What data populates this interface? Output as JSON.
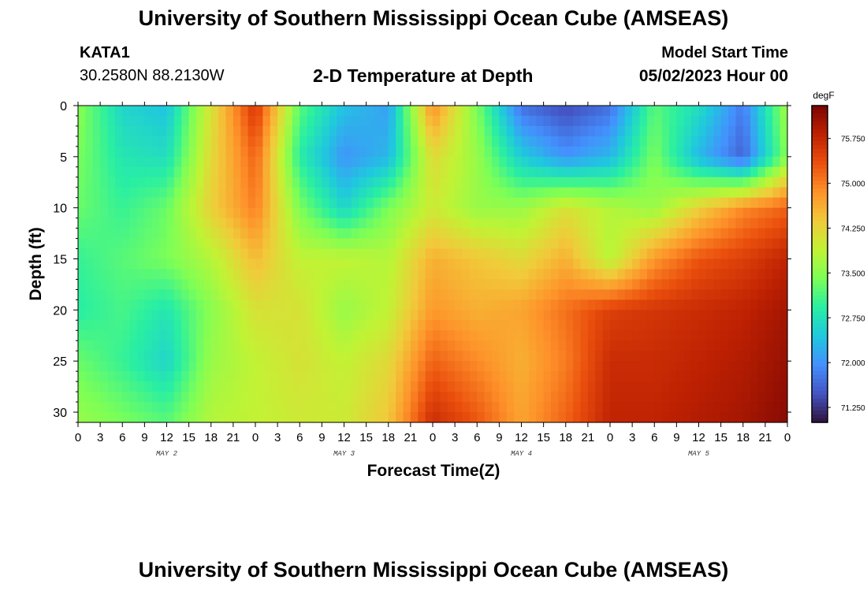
{
  "header": {
    "title": "University of Southern Mississippi Ocean Cube (AMSEAS)",
    "station": "KATA1",
    "coords": "30.2580N  88.2130W",
    "subtitle": "2-D Temperature at Depth",
    "start_label": "Model Start Time",
    "start_value": "05/02/2023 Hour 00"
  },
  "footer": {
    "title": "University of Southern Mississippi Ocean Cube (AMSEAS)"
  },
  "chart_data": {
    "type": "heatmap",
    "title": "2-D Temperature at Depth",
    "xlabel": "Forecast Time(Z)",
    "ylabel": "Depth (ft)",
    "x_tick_labels": [
      "0",
      "3",
      "6",
      "9",
      "12",
      "15",
      "18",
      "21",
      "0",
      "3",
      "6",
      "9",
      "12",
      "15",
      "18",
      "21",
      "0",
      "3",
      "6",
      "9",
      "12",
      "15",
      "18",
      "21",
      "0",
      "3",
      "6",
      "9",
      "12",
      "15",
      "18",
      "21",
      "0"
    ],
    "day_labels": [
      "MAY 2",
      "MAY 3",
      "MAY 4",
      "MAY 5"
    ],
    "xlim_hours": [
      0,
      96
    ],
    "y_ticks": [
      0,
      5,
      10,
      15,
      20,
      25,
      30
    ],
    "ylim": [
      31,
      0
    ],
    "colorbar": {
      "unit": "degF",
      "ticks": [
        "75.750",
        "75.000",
        "74.250",
        "73.500",
        "72.750",
        "72.000",
        "71.250"
      ],
      "tick_values": [
        75.75,
        75.0,
        74.25,
        73.5,
        72.75,
        72.0,
        71.25
      ],
      "range": [
        71.0,
        76.3
      ],
      "colors": [
        "#30123b",
        "#4454c4",
        "#4490fe",
        "#1fc8de",
        "#29efa2",
        "#7dff56",
        "#c1f334",
        "#f1ca3a",
        "#fe922a",
        "#ea4f0d",
        "#be2102",
        "#7a0403"
      ]
    },
    "x_hours": [
      0,
      6,
      12,
      18,
      24,
      30,
      36,
      42,
      48,
      54,
      60,
      66,
      72,
      78,
      84,
      90,
      96
    ],
    "depths_ft": [
      0,
      5,
      10,
      15,
      20,
      25,
      31
    ],
    "temperature_degF": [
      [
        73.5,
        72.6,
        72.4,
        74.1,
        75.6,
        73.2,
        72.4,
        72.1,
        74.9,
        73.4,
        71.7,
        71.4,
        71.7,
        73.2,
        72.7,
        71.8,
        73.7
      ],
      [
        73.4,
        72.8,
        72.7,
        74.2,
        75.2,
        72.9,
        72.0,
        72.3,
        74.2,
        73.6,
        72.5,
        72.0,
        72.3,
        73.4,
        72.3,
        71.6,
        73.5
      ],
      [
        73.3,
        73.0,
        73.3,
        74.3,
        75.0,
        73.4,
        72.6,
        73.4,
        74.0,
        73.6,
        73.6,
        74.1,
        73.8,
        73.6,
        74.3,
        74.9,
        75.2
      ],
      [
        73.0,
        73.2,
        73.4,
        73.8,
        74.5,
        73.9,
        73.9,
        73.8,
        74.6,
        74.4,
        74.2,
        74.6,
        73.8,
        74.8,
        75.3,
        75.5,
        75.8
      ],
      [
        72.9,
        73.1,
        72.8,
        73.5,
        74.1,
        74.1,
        73.6,
        73.9,
        74.8,
        74.6,
        74.7,
        75.1,
        75.5,
        75.6,
        75.7,
        75.8,
        76.0
      ],
      [
        73.3,
        73.0,
        72.6,
        73.6,
        73.9,
        74.1,
        73.9,
        74.2,
        75.2,
        74.9,
        74.6,
        75.0,
        75.7,
        75.7,
        75.8,
        75.9,
        76.1
      ],
      [
        73.6,
        73.4,
        73.2,
        73.8,
        73.9,
        74.0,
        74.0,
        74.4,
        75.7,
        75.3,
        74.7,
        75.2,
        75.8,
        75.8,
        75.9,
        76.0,
        76.2
      ]
    ]
  }
}
